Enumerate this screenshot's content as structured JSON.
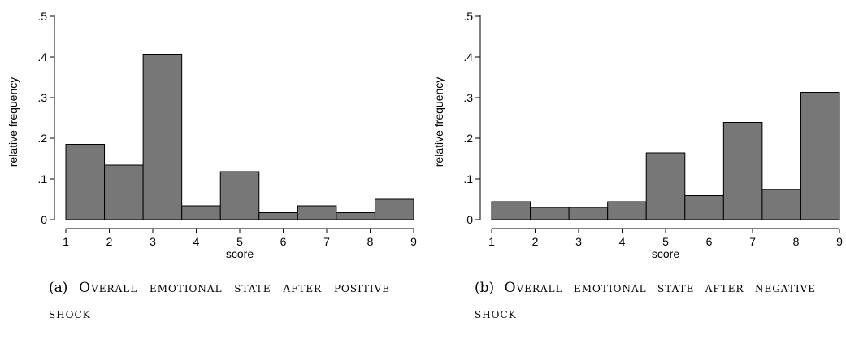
{
  "chart_data": [
    {
      "type": "bar",
      "categories": [
        "1",
        "2",
        "3",
        "4",
        "5",
        "6",
        "7",
        "8",
        "9"
      ],
      "values": [
        0.185,
        0.134,
        0.405,
        0.034,
        0.118,
        0.017,
        0.034,
        0.017,
        0.05
      ],
      "xlabel": "score",
      "ylabel": "relative frequency",
      "ylim": [
        0,
        0.5
      ],
      "xlim": [
        1,
        9
      ],
      "yticks": [
        "0",
        ".1",
        ".2",
        ".3",
        ".4",
        ".5"
      ],
      "xticks": [
        "1",
        "2",
        "3",
        "4",
        "5",
        "6",
        "7",
        "8",
        "9"
      ],
      "grid": false,
      "bar_color": "#777777",
      "caption_label": "(a)",
      "caption_text": "Overall emotional state after positive shock"
    },
    {
      "type": "bar",
      "categories": [
        "1",
        "2",
        "3",
        "4",
        "5",
        "6",
        "7",
        "8",
        "9"
      ],
      "values": [
        0.044,
        0.03,
        0.03,
        0.044,
        0.164,
        0.059,
        0.239,
        0.074,
        0.313
      ],
      "xlabel": "score",
      "ylabel": "relative frequency",
      "ylim": [
        0,
        0.5
      ],
      "xlim": [
        1,
        9
      ],
      "yticks": [
        "0",
        ".1",
        ".2",
        ".3",
        ".4",
        ".5"
      ],
      "xticks": [
        "1",
        "2",
        "3",
        "4",
        "5",
        "6",
        "7",
        "8",
        "9"
      ],
      "grid": false,
      "bar_color": "#777777",
      "caption_label": "(b)",
      "caption_text": "Overall emotional state after negative shock"
    }
  ]
}
